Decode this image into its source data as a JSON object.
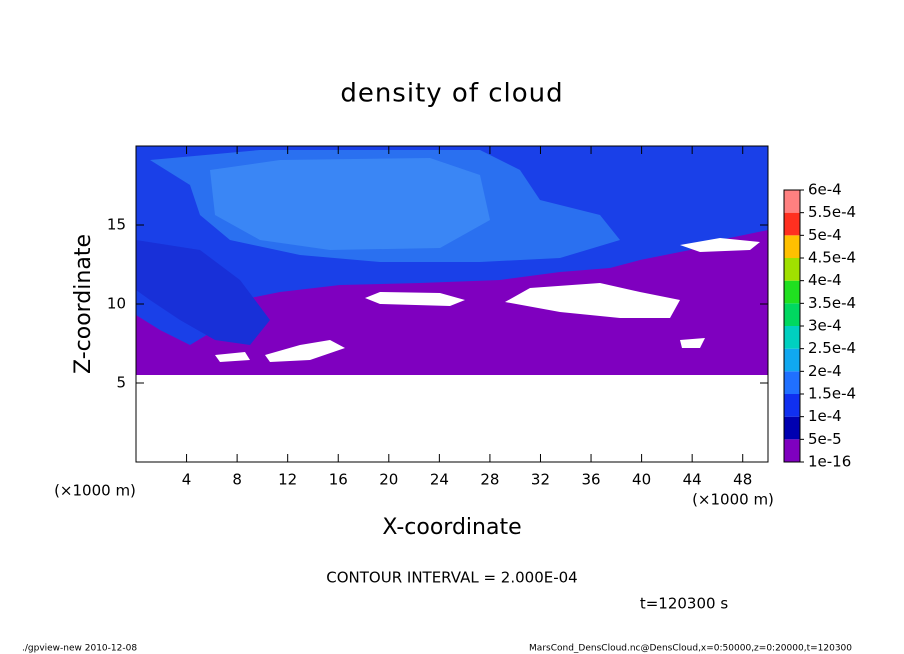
{
  "chart_data": {
    "type": "contour",
    "title": "density of cloud",
    "xlabel": "X-coordinate",
    "ylabel": "Z-coordinate",
    "x_unit": "(×1000 m)",
    "y_unit": "(×1000 m)",
    "xlim": [
      0,
      50
    ],
    "xticks": [
      4,
      8,
      12,
      16,
      20,
      24,
      28,
      32,
      36,
      40,
      44,
      48
    ],
    "ylim": [
      0,
      20
    ],
    "yticks": [
      5,
      10,
      15
    ],
    "colorbar": {
      "levels": [
        {
          "value": 1e-16,
          "label": "1e-16"
        },
        {
          "value": 5e-05,
          "label": "5e-5"
        },
        {
          "value": 0.0001,
          "label": "1e-4"
        },
        {
          "value": 0.00015,
          "label": "1.5e-4"
        },
        {
          "value": 0.0002,
          "label": "2e-4"
        },
        {
          "value": 0.00025,
          "label": "2.5e-4"
        },
        {
          "value": 0.0003,
          "label": "3e-4"
        },
        {
          "value": 0.00035,
          "label": "3.5e-4"
        },
        {
          "value": 0.0004,
          "label": "4e-4"
        },
        {
          "value": 0.00045,
          "label": "4.5e-4"
        },
        {
          "value": 0.0005,
          "label": "5e-4"
        },
        {
          "value": 0.00055,
          "label": "5.5e-4"
        },
        {
          "value": 0.0006,
          "label": "6e-4"
        }
      ],
      "colors": [
        "#7f00bf",
        "#0000b0",
        "#1030f0",
        "#2070ff",
        "#10a8f0",
        "#00d0c0",
        "#00d860",
        "#20e020",
        "#a0e000",
        "#ffc000",
        "#ff3020",
        "#ff8080"
      ]
    },
    "contour_interval": "CONTOUR INTERVAL = 2.000E-04",
    "time_label": "t=120300 s",
    "footer_left": "./gpview-new  2010-12-08",
    "footer_right": "MarsCond_DensCloud.nc@DensCloud,x=0:50000,z=0:20000,t=120300"
  }
}
